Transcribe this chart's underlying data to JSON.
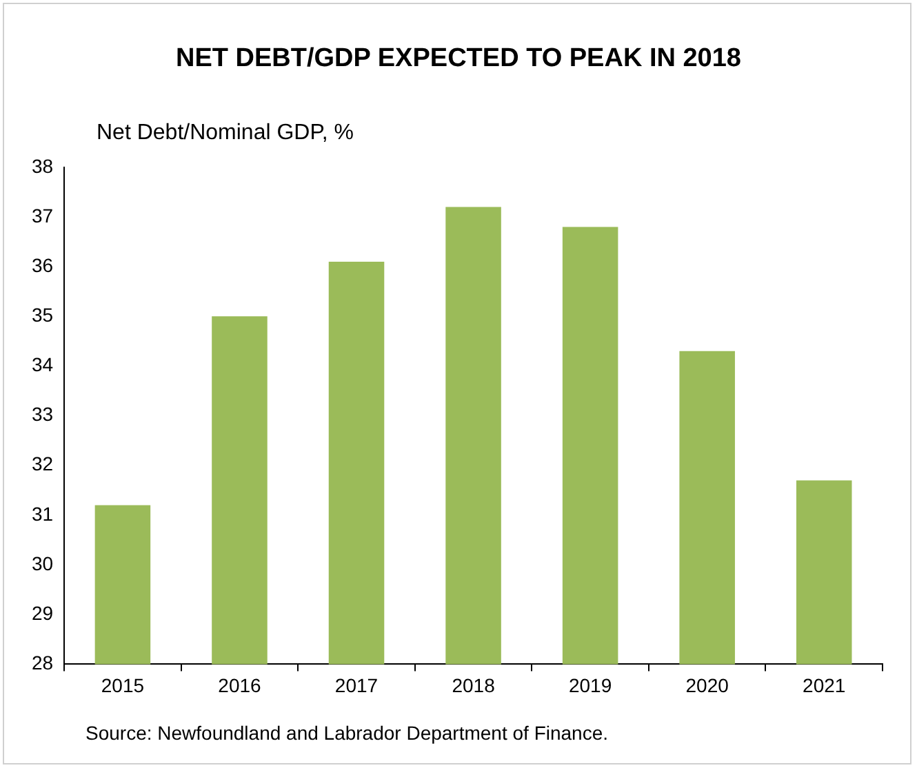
{
  "chart_data": {
    "type": "bar",
    "title": "NET DEBT/GDP EXPECTED TO PEAK IN 2018",
    "ylabel": "Net Debt/Nominal GDP, %",
    "categories": [
      "2015",
      "2016",
      "2017",
      "2018",
      "2019",
      "2020",
      "2021"
    ],
    "values": [
      31.2,
      35.0,
      36.1,
      37.2,
      36.8,
      34.3,
      31.7
    ],
    "color": "#9bbb59",
    "ylim": [
      28,
      38
    ],
    "yticks": [
      28,
      29,
      30,
      31,
      32,
      33,
      34,
      35,
      36,
      37,
      38
    ],
    "grid": false,
    "legend": false,
    "annotations": [
      "Source: Newfoundland and Labrador Department of Finance."
    ]
  }
}
